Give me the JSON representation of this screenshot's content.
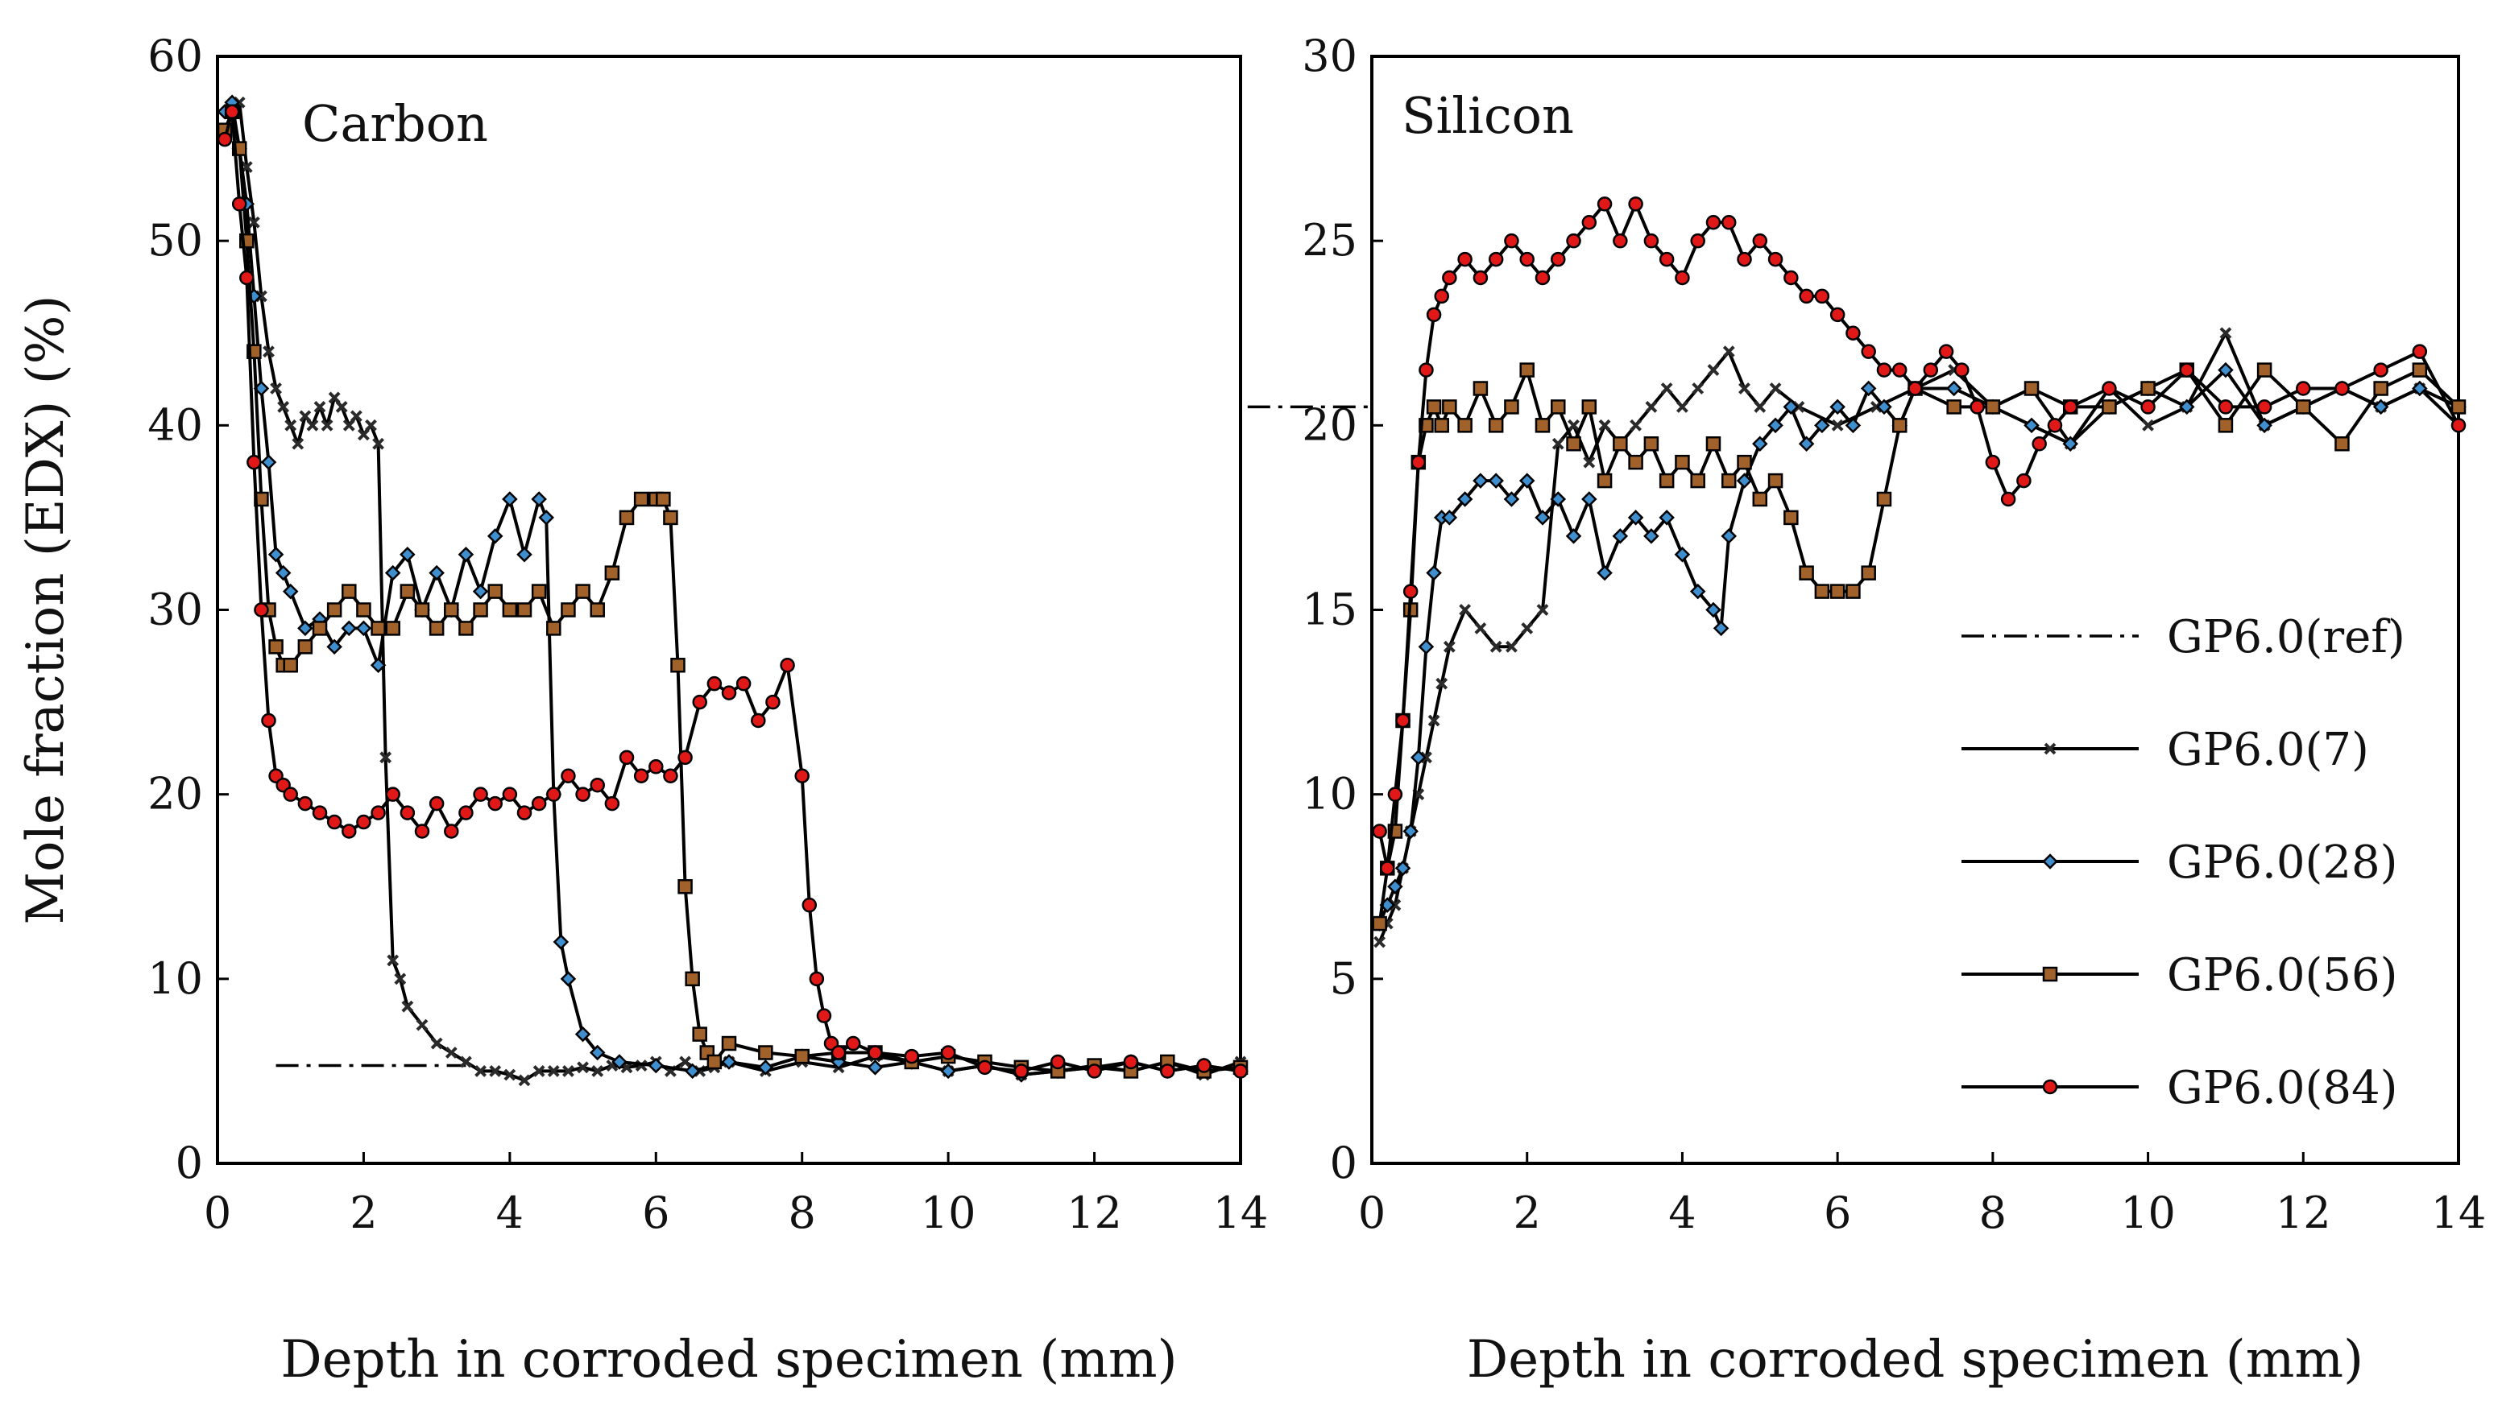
{
  "legend": [
    {
      "key": "ref",
      "label": "GP6.0(ref)",
      "marker": "none",
      "dash": "dashdot",
      "color": "#000000"
    },
    {
      "key": "d7",
      "label": "GP6.0(7)",
      "marker": "x",
      "color": "#2a2a2a"
    },
    {
      "key": "d28",
      "label": "GP6.0(28)",
      "marker": "diamond",
      "color": "#3f8fcf"
    },
    {
      "key": "d56",
      "label": "GP6.0(56)",
      "marker": "square",
      "color": "#a0622a"
    },
    {
      "key": "d84",
      "label": "GP6.0(84)",
      "marker": "circle",
      "color": "#e01818"
    }
  ],
  "chart_data": [
    {
      "type": "line",
      "title": "Carbon",
      "xlabel": "Depth in corroded specimen (mm)",
      "ylabel": "Mole fraction (EDX) (%)",
      "xlim": [
        0,
        14
      ],
      "ylim": [
        0,
        60
      ],
      "xticks": [
        "0",
        "2",
        "4",
        "6",
        "8",
        "10",
        "12",
        "14"
      ],
      "yticks": [
        "0",
        "10",
        "20",
        "30",
        "40",
        "50",
        "60"
      ],
      "reference": {
        "name": "GP6.0(ref)",
        "y": 5.3,
        "x_range": [
          0.8,
          3.4
        ]
      },
      "series": [
        {
          "name": "GP6.0(7)",
          "key": "d7",
          "x": [
            0.1,
            0.2,
            0.3,
            0.4,
            0.5,
            0.6,
            0.7,
            0.8,
            0.9,
            1.0,
            1.1,
            1.2,
            1.3,
            1.4,
            1.5,
            1.6,
            1.7,
            1.8,
            1.9,
            2.0,
            2.1,
            2.2,
            2.3,
            2.4,
            2.5,
            2.6,
            2.8,
            3.0,
            3.2,
            3.4,
            3.6,
            3.8,
            4.0,
            4.2,
            4.4,
            4.6,
            4.8,
            5.0,
            5.2,
            5.4,
            5.6,
            5.8,
            6.0,
            6.2,
            6.4,
            6.6,
            6.8,
            7.0,
            7.5,
            8.0,
            8.5,
            9.0,
            9.5,
            10.0,
            10.5,
            11.0,
            11.5,
            12.0,
            12.5,
            13.0,
            13.5,
            14.0
          ],
          "y": [
            56,
            57,
            57.5,
            54,
            51,
            47,
            44,
            42,
            41,
            40,
            39,
            40.5,
            40,
            41,
            40,
            41.5,
            41,
            40,
            40.5,
            39.5,
            40,
            39,
            22,
            11,
            10,
            8.5,
            7.5,
            6.5,
            6,
            5.5,
            5,
            5,
            4.8,
            4.5,
            5,
            5,
            5,
            5.2,
            5,
            5.3,
            5.2,
            5.3,
            5.5,
            5,
            5.5,
            5,
            5.2,
            5.5,
            5,
            5.5,
            5.2,
            5.8,
            5.5,
            5,
            5.3,
            4.8,
            5,
            5.2,
            5,
            5.5,
            4.8,
            5.5
          ]
        },
        {
          "name": "GP6.0(28)",
          "key": "d28",
          "x": [
            0.1,
            0.2,
            0.3,
            0.4,
            0.5,
            0.6,
            0.7,
            0.8,
            0.9,
            1.0,
            1.2,
            1.4,
            1.6,
            1.8,
            2.0,
            2.2,
            2.4,
            2.6,
            2.8,
            3.0,
            3.2,
            3.4,
            3.6,
            3.8,
            4.0,
            4.2,
            4.4,
            4.5,
            4.6,
            4.7,
            4.8,
            5.0,
            5.2,
            5.5,
            6.0,
            6.5,
            7.0,
            7.5,
            8.0,
            8.5,
            9.0,
            9.5,
            10.0,
            10.5,
            11.0,
            11.5,
            12.0,
            12.5,
            13.0,
            13.5,
            14.0
          ],
          "y": [
            57,
            57.5,
            55,
            52,
            47,
            42,
            38,
            33,
            32,
            31,
            29,
            29.5,
            28,
            29,
            29,
            27,
            32,
            33,
            30,
            32,
            30,
            33,
            31,
            34,
            36,
            33,
            36,
            35,
            20,
            12,
            10,
            7,
            6,
            5.5,
            5.3,
            5,
            5.5,
            5.2,
            5.8,
            5.5,
            5.2,
            5.5,
            5,
            5.3,
            4.8,
            5,
            5.2,
            5.5,
            5,
            5.3,
            5
          ]
        },
        {
          "name": "GP6.0(56)",
          "key": "d56",
          "x": [
            0.1,
            0.2,
            0.3,
            0.4,
            0.5,
            0.6,
            0.7,
            0.8,
            0.9,
            1.0,
            1.2,
            1.4,
            1.6,
            1.8,
            2.0,
            2.2,
            2.4,
            2.6,
            2.8,
            3.0,
            3.2,
            3.4,
            3.6,
            3.8,
            4.0,
            4.2,
            4.4,
            4.6,
            4.8,
            5.0,
            5.2,
            5.4,
            5.6,
            5.8,
            6.0,
            6.1,
            6.2,
            6.3,
            6.4,
            6.5,
            6.6,
            6.7,
            6.8,
            7.0,
            7.5,
            8.0,
            8.5,
            9.0,
            9.5,
            10.0,
            10.5,
            11.0,
            11.5,
            12.0,
            12.5,
            13.0,
            13.5,
            14.0
          ],
          "y": [
            56,
            57,
            55,
            50,
            44,
            36,
            30,
            28,
            27,
            27,
            28,
            29,
            30,
            31,
            30,
            29,
            29,
            31,
            30,
            29,
            30,
            29,
            30,
            31,
            30,
            30,
            31,
            29,
            30,
            31,
            30,
            32,
            35,
            36,
            36,
            36,
            35,
            27,
            15,
            10,
            7,
            6,
            5.5,
            6.5,
            6,
            5.8,
            6,
            6,
            5.5,
            5.8,
            5.5,
            5.2,
            5,
            5.3,
            5,
            5.5,
            5,
            5.2
          ]
        },
        {
          "name": "GP6.0(84)",
          "key": "d84",
          "x": [
            0.1,
            0.2,
            0.3,
            0.4,
            0.5,
            0.6,
            0.7,
            0.8,
            0.9,
            1.0,
            1.2,
            1.4,
            1.6,
            1.8,
            2.0,
            2.2,
            2.4,
            2.6,
            2.8,
            3.0,
            3.2,
            3.4,
            3.6,
            3.8,
            4.0,
            4.2,
            4.4,
            4.6,
            4.8,
            5.0,
            5.2,
            5.4,
            5.6,
            5.8,
            6.0,
            6.2,
            6.4,
            6.6,
            6.8,
            7.0,
            7.2,
            7.4,
            7.6,
            7.8,
            8.0,
            8.1,
            8.2,
            8.3,
            8.4,
            8.5,
            8.7,
            9.0,
            9.5,
            10.0,
            10.5,
            11.0,
            11.5,
            12.0,
            12.5,
            13.0,
            13.5,
            14.0
          ],
          "y": [
            55.5,
            57,
            52,
            48,
            38,
            30,
            24,
            21,
            20.5,
            20,
            19.5,
            19,
            18.5,
            18,
            18.5,
            19,
            20,
            19,
            18,
            19.5,
            18,
            19,
            20,
            19.5,
            20,
            19,
            19.5,
            20,
            21,
            20,
            20.5,
            19.5,
            22,
            21,
            21.5,
            21,
            22,
            25,
            26,
            25.5,
            26,
            24,
            25,
            27,
            21,
            14,
            10,
            8,
            6.5,
            6,
            6.5,
            6,
            5.8,
            6,
            5.2,
            5,
            5.5,
            5,
            5.5,
            5,
            5.3,
            5
          ]
        }
      ]
    },
    {
      "type": "line",
      "title": "Silicon",
      "xlabel": "Depth in corroded specimen (mm)",
      "ylabel": "",
      "xlim": [
        0,
        14
      ],
      "ylim": [
        0,
        30
      ],
      "xticks": [
        "0",
        "2",
        "4",
        "6",
        "8",
        "10",
        "12",
        "14"
      ],
      "yticks": [
        "0",
        "5",
        "10",
        "15",
        "20",
        "25",
        "30"
      ],
      "reference": {
        "name": "GP6.0(ref)",
        "y": 20.5,
        "x_range": [
          -1.6,
          0
        ]
      },
      "series": [
        {
          "name": "GP6.0(7)",
          "key": "d7",
          "x": [
            0.1,
            0.2,
            0.3,
            0.4,
            0.5,
            0.6,
            0.7,
            0.8,
            0.9,
            1.0,
            1.2,
            1.4,
            1.6,
            1.8,
            2.0,
            2.2,
            2.4,
            2.6,
            2.8,
            3.0,
            3.2,
            3.4,
            3.6,
            3.8,
            4.0,
            4.2,
            4.4,
            4.6,
            4.8,
            5.0,
            5.2,
            5.5,
            6.0,
            6.5,
            7.0,
            7.5,
            8.0,
            8.5,
            9.0,
            9.5,
            10.0,
            10.5,
            11.0,
            11.5,
            12.0,
            12.5,
            13.0,
            13.5,
            14.0
          ],
          "y": [
            6,
            6.5,
            7,
            8,
            9,
            10,
            11,
            12,
            13,
            14,
            15,
            14.5,
            14,
            14,
            14.5,
            15,
            19.5,
            20,
            19,
            20,
            19.5,
            20,
            20.5,
            21,
            20.5,
            21,
            21.5,
            22,
            21,
            20.5,
            21,
            20.5,
            20,
            20.5,
            21,
            21.5,
            20.5,
            21,
            19.5,
            21,
            20,
            20.5,
            22.5,
            20,
            20.5,
            21,
            20.5,
            21,
            20
          ]
        },
        {
          "name": "GP6.0(28)",
          "key": "d28",
          "x": [
            0.1,
            0.2,
            0.3,
            0.4,
            0.5,
            0.6,
            0.7,
            0.8,
            0.9,
            1.0,
            1.2,
            1.4,
            1.6,
            1.8,
            2.0,
            2.2,
            2.4,
            2.6,
            2.8,
            3.0,
            3.2,
            3.4,
            3.6,
            3.8,
            4.0,
            4.2,
            4.4,
            4.5,
            4.6,
            4.8,
            5.0,
            5.2,
            5.4,
            5.6,
            5.8,
            6.0,
            6.2,
            6.4,
            6.6,
            6.8,
            7.0,
            7.5,
            8.0,
            8.5,
            9.0,
            9.5,
            10.0,
            10.5,
            11.0,
            11.5,
            12.0,
            12.5,
            13.0,
            13.5,
            14.0
          ],
          "y": [
            6.5,
            7,
            7.5,
            8,
            9,
            11,
            14,
            16,
            17.5,
            17.5,
            18,
            18.5,
            18.5,
            18,
            18.5,
            17.5,
            18,
            17,
            18,
            16,
            17,
            17.5,
            17,
            17.5,
            16.5,
            15.5,
            15,
            14.5,
            17,
            18.5,
            19.5,
            20,
            20.5,
            19.5,
            20,
            20.5,
            20,
            21,
            20.5,
            20,
            21,
            21,
            20.5,
            20,
            19.5,
            20.5,
            21,
            20.5,
            21.5,
            20,
            20.5,
            21,
            20.5,
            21,
            20.5
          ]
        },
        {
          "name": "GP6.0(56)",
          "key": "d56",
          "x": [
            0.1,
            0.2,
            0.3,
            0.4,
            0.5,
            0.6,
            0.7,
            0.8,
            0.9,
            1.0,
            1.2,
            1.4,
            1.6,
            1.8,
            2.0,
            2.2,
            2.4,
            2.6,
            2.8,
            3.0,
            3.2,
            3.4,
            3.6,
            3.8,
            4.0,
            4.2,
            4.4,
            4.6,
            4.8,
            5.0,
            5.2,
            5.4,
            5.6,
            5.8,
            6.0,
            6.2,
            6.4,
            6.6,
            6.8,
            7.0,
            7.5,
            8.0,
            8.5,
            9.0,
            9.5,
            10.0,
            10.5,
            11.0,
            11.5,
            12.0,
            12.5,
            13.0,
            13.5,
            14.0
          ],
          "y": [
            6.5,
            8,
            9,
            12,
            15,
            19,
            20,
            20.5,
            20,
            20.5,
            20,
            21,
            20,
            20.5,
            21.5,
            20,
            20.5,
            19.5,
            20.5,
            18.5,
            19.5,
            19,
            19.5,
            18.5,
            19,
            18.5,
            19.5,
            18.5,
            19,
            18,
            18.5,
            17.5,
            16,
            15.5,
            15.5,
            15.5,
            16,
            18,
            20,
            21,
            20.5,
            20.5,
            21,
            20.5,
            20.5,
            21,
            21.5,
            20,
            21.5,
            20.5,
            19.5,
            21,
            21.5,
            20.5
          ]
        },
        {
          "name": "GP6.0(84)",
          "key": "d84",
          "x": [
            0.1,
            0.2,
            0.3,
            0.4,
            0.5,
            0.6,
            0.7,
            0.8,
            0.9,
            1.0,
            1.2,
            1.4,
            1.6,
            1.8,
            2.0,
            2.2,
            2.4,
            2.6,
            2.8,
            3.0,
            3.2,
            3.4,
            3.6,
            3.8,
            4.0,
            4.2,
            4.4,
            4.6,
            4.8,
            5.0,
            5.2,
            5.4,
            5.6,
            5.8,
            6.0,
            6.2,
            6.4,
            6.6,
            6.8,
            7.0,
            7.2,
            7.4,
            7.6,
            7.8,
            8.0,
            8.2,
            8.4,
            8.6,
            8.8,
            9.0,
            9.5,
            10.0,
            10.5,
            11.0,
            11.5,
            12.0,
            12.5,
            13.0,
            13.5,
            14.0
          ],
          "y": [
            9,
            8,
            10,
            12,
            15.5,
            19,
            21.5,
            23,
            23.5,
            24,
            24.5,
            24,
            24.5,
            25,
            24.5,
            24,
            24.5,
            25,
            25.5,
            26,
            25,
            26,
            25,
            24.5,
            24,
            25,
            25.5,
            25.5,
            24.5,
            25,
            24.5,
            24,
            23.5,
            23.5,
            23,
            22.5,
            22,
            21.5,
            21.5,
            21,
            21.5,
            22,
            21.5,
            20.5,
            19,
            18,
            18.5,
            19.5,
            20,
            20.5,
            21,
            20.5,
            21.5,
            20.5,
            20.5,
            21,
            21,
            21.5,
            22,
            20
          ]
        }
      ]
    }
  ]
}
